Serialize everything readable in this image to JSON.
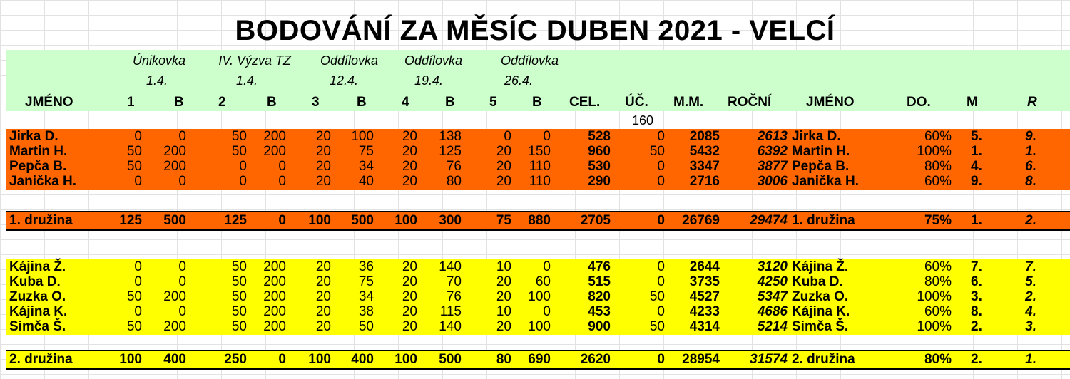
{
  "title": "BODOVÁNÍ ZA MĚSÍC DUBEN 2021 - VELCÍ",
  "activities": [
    {
      "name": "Únikovka",
      "date": "1.4."
    },
    {
      "name": "IV. Výzva TZ",
      "date": "1.4."
    },
    {
      "name": "Oddílovka",
      "date": "12.4."
    },
    {
      "name": "Oddílovka",
      "date": "19.4."
    },
    {
      "name": "Oddílovka",
      "date": "26.4."
    }
  ],
  "columns": {
    "name": "JMÉNO",
    "a1": "1",
    "b1": "B",
    "a2": "2",
    "b2": "B",
    "a3": "3",
    "b3": "B",
    "a4": "4",
    "b4": "B",
    "a5": "5",
    "b5": "B",
    "cel": "CEL.",
    "uc": "ÚČ.",
    "mm": "M.M.",
    "rocni": "ROČNÍ",
    "name2": "JMÉNO",
    "do": "DO.",
    "m": "M",
    "r": "R"
  },
  "participants_count": "160",
  "teams": [
    {
      "color": "#ff6600",
      "rows": [
        [
          "Jirka D.",
          "0",
          "0",
          "50",
          "200",
          "20",
          "100",
          "20",
          "138",
          "0",
          "0",
          "528",
          "0",
          "2085",
          "2613",
          "Jirka D.",
          "60%",
          "5.",
          "9."
        ],
        [
          "Martin H.",
          "50",
          "200",
          "50",
          "200",
          "20",
          "75",
          "20",
          "125",
          "20",
          "150",
          "960",
          "50",
          "5432",
          "6392",
          "Martin H.",
          "100%",
          "1.",
          "1."
        ],
        [
          "Pepča B.",
          "50",
          "200",
          "0",
          "0",
          "20",
          "34",
          "20",
          "76",
          "20",
          "110",
          "530",
          "0",
          "3347",
          "3877",
          "Pepča B.",
          "80%",
          "4.",
          "6."
        ],
        [
          "Janička H.",
          "0",
          "0",
          "0",
          "0",
          "20",
          "40",
          "20",
          "80",
          "20",
          "110",
          "290",
          "0",
          "2716",
          "3006",
          "Janička H.",
          "60%",
          "9.",
          "8."
        ]
      ],
      "total": [
        "1. družina",
        "125",
        "500",
        "125",
        "0",
        "100",
        "500",
        "100",
        "300",
        "75",
        "880",
        "2705",
        "0",
        "26769",
        "29474",
        "1. družina",
        "75%",
        "1.",
        "2."
      ]
    },
    {
      "color": "#ffff00",
      "rows": [
        [
          "Kájina Ž.",
          "0",
          "0",
          "50",
          "200",
          "20",
          "36",
          "20",
          "140",
          "10",
          "0",
          "476",
          "0",
          "2644",
          "3120",
          "Kájina Ž.",
          "60%",
          "7.",
          "7."
        ],
        [
          "Kuba D.",
          "0",
          "0",
          "50",
          "200",
          "20",
          "75",
          "20",
          "70",
          "20",
          "60",
          "515",
          "0",
          "3735",
          "4250",
          "Kuba D.",
          "80%",
          "6.",
          "5."
        ],
        [
          "Zuzka O.",
          "50",
          "200",
          "50",
          "200",
          "20",
          "34",
          "20",
          "76",
          "20",
          "100",
          "820",
          "50",
          "4527",
          "5347",
          "Zuzka O.",
          "100%",
          "3.",
          "2."
        ],
        [
          "Kájina K.",
          "0",
          "0",
          "50",
          "200",
          "20",
          "38",
          "20",
          "115",
          "10",
          "0",
          "453",
          "0",
          "4233",
          "4686",
          "Kájina K.",
          "60%",
          "8.",
          "4."
        ],
        [
          "Simča Š.",
          "50",
          "200",
          "50",
          "200",
          "20",
          "50",
          "20",
          "140",
          "20",
          "100",
          "900",
          "50",
          "4314",
          "5214",
          "Simča Š.",
          "100%",
          "2.",
          "3."
        ]
      ],
      "total": [
        "2. družina",
        "100",
        "400",
        "250",
        "0",
        "100",
        "400",
        "100",
        "500",
        "80",
        "690",
        "2620",
        "0",
        "28954",
        "31574",
        "2. družina",
        "80%",
        "2.",
        "1."
      ]
    }
  ]
}
